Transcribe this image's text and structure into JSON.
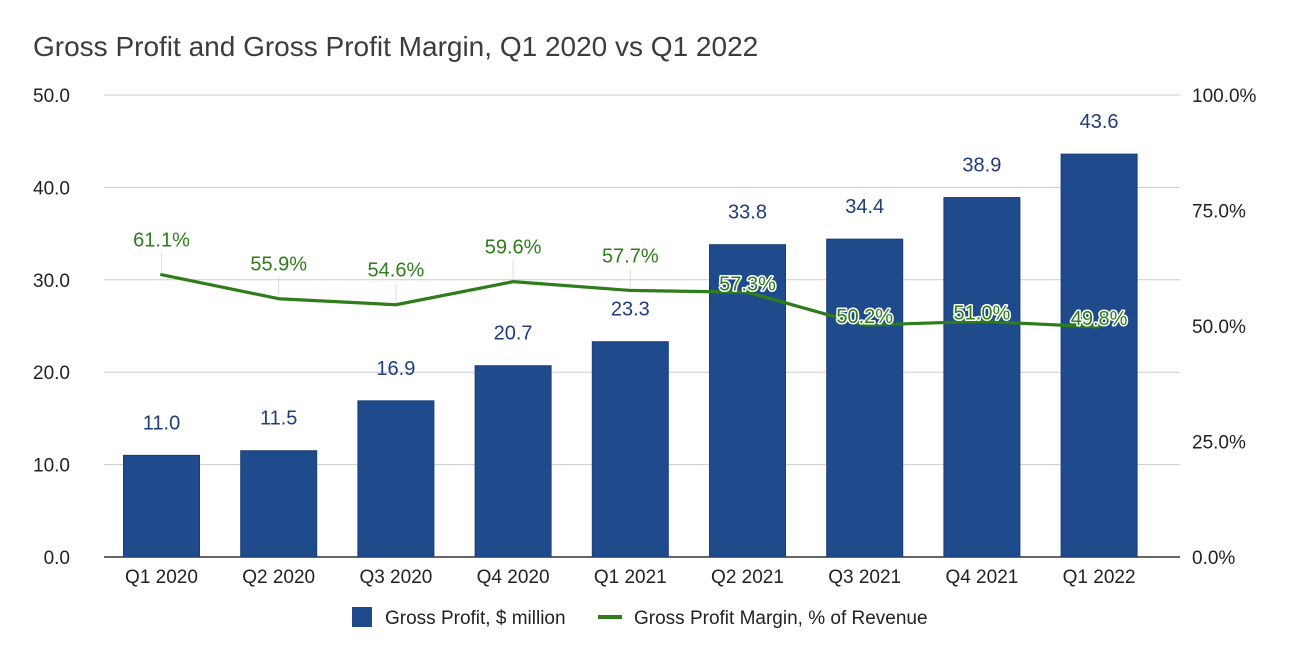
{
  "chart_data": {
    "type": "bar",
    "title": "Gross Profit and Gross Profit Margin, Q1 2020 vs Q1 2022",
    "categories": [
      "Q1 2020",
      "Q2 2020",
      "Q3 2020",
      "Q4 2020",
      "Q1 2021",
      "Q2 2021",
      "Q3 2021",
      "Q4 2021",
      "Q1 2022"
    ],
    "series": [
      {
        "name": "Gross Profit, $ million",
        "type": "bar",
        "axis": "left",
        "color": "#1f4a8c",
        "label_color": "#1f3d7a",
        "values": [
          11.0,
          11.5,
          16.9,
          20.7,
          23.3,
          33.8,
          34.4,
          38.9,
          43.6
        ],
        "labels": [
          "11.0",
          "11.5",
          "16.9",
          "20.7",
          "23.3",
          "33.8",
          "34.4",
          "38.9",
          "43.6"
        ]
      },
      {
        "name": "Gross Profit Margin, % of Revenue",
        "type": "line",
        "axis": "right",
        "color": "#2e7d1a",
        "label_color": "#2e7d1a",
        "values": [
          61.1,
          55.9,
          54.6,
          59.6,
          57.7,
          57.3,
          50.2,
          51.0,
          49.8
        ],
        "labels": [
          "61.1%",
          "55.9%",
          "54.6%",
          "59.6%",
          "57.7%",
          "57.3%",
          "50.2%",
          "51.0%",
          "49.8%"
        ]
      }
    ],
    "y_left": {
      "range": [
        0,
        50
      ],
      "ticks": [
        0,
        10,
        20,
        30,
        40,
        50
      ],
      "tick_labels": [
        "0.0",
        "10.0",
        "20.0",
        "30.0",
        "40.0",
        "50.0"
      ]
    },
    "y_right": {
      "range": [
        0,
        100
      ],
      "ticks": [
        0,
        25,
        50,
        75,
        100
      ],
      "tick_labels": [
        "0.0%",
        "25.0%",
        "50.0%",
        "75.0%",
        "100.0%"
      ]
    },
    "xlabel": "",
    "ylabel": "",
    "grid": true,
    "legend_position": "bottom"
  }
}
